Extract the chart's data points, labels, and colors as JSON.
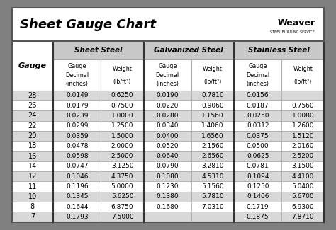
{
  "title": "Sheet Gauge Chart",
  "bg_outer": "#808080",
  "bg_inner": "#ffffff",
  "bg_row_even": "#ffffff",
  "bg_row_odd": "#d8d8d8",
  "bg_header_section": "#c8c8c8",
  "gauges": [
    28,
    26,
    24,
    22,
    20,
    18,
    16,
    14,
    12,
    11,
    10,
    8,
    7
  ],
  "sheet_steel": [
    [
      "0.0149",
      "0.6250"
    ],
    [
      "0.0179",
      "0.7500"
    ],
    [
      "0.0239",
      "1.0000"
    ],
    [
      "0.0299",
      "1.2500"
    ],
    [
      "0.0359",
      "1.5000"
    ],
    [
      "0.0478",
      "2.0000"
    ],
    [
      "0.0598",
      "2.5000"
    ],
    [
      "0.0747",
      "3.1250"
    ],
    [
      "0.1046",
      "4.3750"
    ],
    [
      "0.1196",
      "5.0000"
    ],
    [
      "0.1345",
      "5.6250"
    ],
    [
      "0.1644",
      "6.8750"
    ],
    [
      "0.1793",
      "7.5000"
    ]
  ],
  "galvanized_steel": [
    [
      "0.0190",
      "0.7810"
    ],
    [
      "0.0220",
      "0.9060"
    ],
    [
      "0.0280",
      "1.1560"
    ],
    [
      "0.0340",
      "1.4060"
    ],
    [
      "0.0400",
      "1.6560"
    ],
    [
      "0.0520",
      "2.1560"
    ],
    [
      "0.0640",
      "2.6560"
    ],
    [
      "0.0790",
      "3.2810"
    ],
    [
      "0.1080",
      "4.5310"
    ],
    [
      "0.1230",
      "5.1560"
    ],
    [
      "0.1380",
      "5.7810"
    ],
    [
      "0.1680",
      "7.0310"
    ],
    [
      "",
      ""
    ]
  ],
  "stainless_steel": [
    [
      "0.0156",
      ""
    ],
    [
      "0.0187",
      "0.7560"
    ],
    [
      "0.0250",
      "1.0080"
    ],
    [
      "0.0312",
      "1.2600"
    ],
    [
      "0.0375",
      "1.5120"
    ],
    [
      "0.0500",
      "2.0160"
    ],
    [
      "0.0625",
      "2.5200"
    ],
    [
      "0.0781",
      "3.1500"
    ],
    [
      "0.1094",
      "4.4100"
    ],
    [
      "0.1250",
      "5.0400"
    ],
    [
      "0.1406",
      "5.6700"
    ],
    [
      "0.1719",
      "6.9300"
    ],
    [
      "0.1875",
      "7.8710"
    ]
  ],
  "section_names": [
    "Sheet Steel",
    "Galvanized Steel",
    "Stainless Steel"
  ],
  "sub_header_col1": "Gauge\nDecimal\n(inches)",
  "sub_header_col2": "Weight\n(lb/ft²)",
  "weaver_text": "Weaver",
  "gauge_label": "Gauge",
  "thin_border": "#aaaaaa",
  "thick_border": "#555555",
  "section_border": "#333333"
}
